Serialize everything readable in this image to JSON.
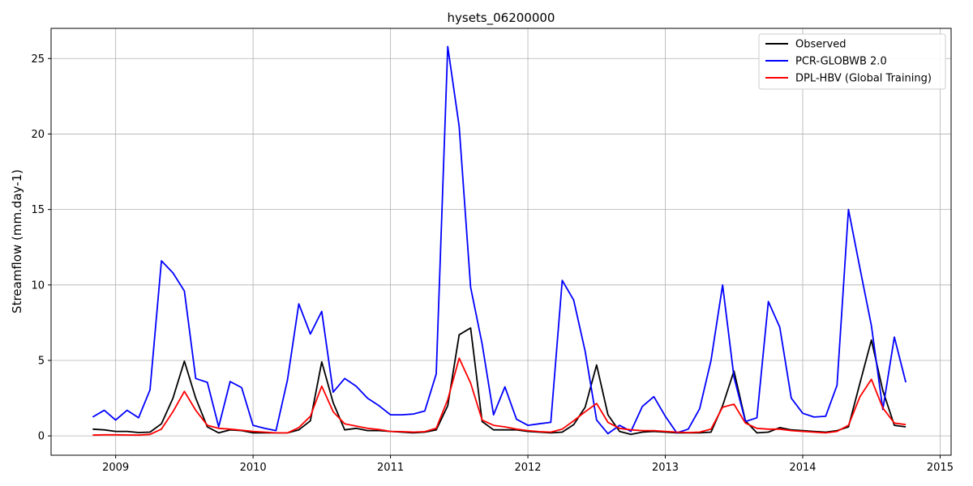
{
  "chart_data": {
    "type": "line",
    "title": "hysets_06200000",
    "xlabel": "",
    "ylabel": "Streamflow (mm.day-1)",
    "xlim": [
      2008.53,
      2015.08
    ],
    "ylim": [
      -1.28,
      27.0
    ],
    "x_ticks": [
      2009,
      2010,
      2011,
      2012,
      2013,
      2014,
      2015
    ],
    "y_ticks": [
      0,
      5,
      10,
      15,
      20,
      25
    ],
    "grid": true,
    "legend_position": "top-right",
    "x": [
      2008.833,
      2008.917,
      2009.0,
      2009.083,
      2009.167,
      2009.25,
      2009.333,
      2009.417,
      2009.5,
      2009.583,
      2009.667,
      2009.75,
      2009.833,
      2009.917,
      2010.0,
      2010.083,
      2010.167,
      2010.25,
      2010.333,
      2010.417,
      2010.5,
      2010.583,
      2010.667,
      2010.75,
      2010.833,
      2010.917,
      2011.0,
      2011.083,
      2011.167,
      2011.25,
      2011.333,
      2011.417,
      2011.5,
      2011.583,
      2011.667,
      2011.75,
      2011.833,
      2011.917,
      2012.0,
      2012.083,
      2012.167,
      2012.25,
      2012.333,
      2012.417,
      2012.5,
      2012.583,
      2012.667,
      2012.75,
      2012.833,
      2012.917,
      2013.0,
      2013.083,
      2013.167,
      2013.25,
      2013.333,
      2013.417,
      2013.5,
      2013.583,
      2013.667,
      2013.75,
      2013.833,
      2013.917,
      2014.0,
      2014.083,
      2014.167,
      2014.25,
      2014.333,
      2014.417,
      2014.5,
      2014.583,
      2014.667,
      2014.75
    ],
    "series": [
      {
        "name": "Observed",
        "color": "#000000",
        "values": [
          0.45,
          0.4,
          0.3,
          0.3,
          0.22,
          0.25,
          0.8,
          2.5,
          4.95,
          2.5,
          0.6,
          0.2,
          0.4,
          0.35,
          0.2,
          0.2,
          0.2,
          0.2,
          0.4,
          1.0,
          4.9,
          2.2,
          0.4,
          0.5,
          0.35,
          0.35,
          0.3,
          0.25,
          0.2,
          0.25,
          0.4,
          2.0,
          6.7,
          7.15,
          0.95,
          0.4,
          0.4,
          0.4,
          0.3,
          0.25,
          0.2,
          0.25,
          0.75,
          1.9,
          4.7,
          1.4,
          0.3,
          0.1,
          0.25,
          0.3,
          0.25,
          0.2,
          0.2,
          0.2,
          0.25,
          2.0,
          4.3,
          1.0,
          0.2,
          0.25,
          0.55,
          0.4,
          0.35,
          0.3,
          0.25,
          0.35,
          0.6,
          3.5,
          6.35,
          3.0,
          0.7,
          0.6
        ]
      },
      {
        "name": "PCR-GLOBWB 2.0",
        "color": "#0000ff",
        "values": [
          1.25,
          1.7,
          1.05,
          1.7,
          1.2,
          3.05,
          11.6,
          10.8,
          9.6,
          3.8,
          3.55,
          0.6,
          3.6,
          3.2,
          0.7,
          0.5,
          0.35,
          3.7,
          8.75,
          6.75,
          8.25,
          2.9,
          3.8,
          3.3,
          2.5,
          2.0,
          1.4,
          1.4,
          1.45,
          1.65,
          4.1,
          25.8,
          20.5,
          9.85,
          6.1,
          1.4,
          3.25,
          1.1,
          0.7,
          0.8,
          0.9,
          10.3,
          9.0,
          5.6,
          1.05,
          0.15,
          0.7,
          0.3,
          1.95,
          2.6,
          1.3,
          0.2,
          0.45,
          1.8,
          5.0,
          10.0,
          3.9,
          0.95,
          1.2,
          8.9,
          7.2,
          2.5,
          1.5,
          1.25,
          1.3,
          3.35,
          15.0,
          11.1,
          7.3,
          1.75,
          6.55,
          3.55
        ]
      },
      {
        "name": "DPL-HBV (Global Training)",
        "color": "#ff0000",
        "values": [
          0.05,
          0.07,
          0.07,
          0.06,
          0.05,
          0.1,
          0.45,
          1.6,
          2.95,
          1.7,
          0.7,
          0.5,
          0.45,
          0.38,
          0.3,
          0.25,
          0.2,
          0.2,
          0.55,
          1.3,
          3.3,
          1.6,
          0.8,
          0.65,
          0.5,
          0.42,
          0.3,
          0.28,
          0.25,
          0.28,
          0.5,
          2.4,
          5.15,
          3.5,
          1.05,
          0.7,
          0.6,
          0.45,
          0.35,
          0.28,
          0.25,
          0.45,
          1.0,
          1.6,
          2.15,
          0.9,
          0.5,
          0.4,
          0.35,
          0.35,
          0.3,
          0.25,
          0.22,
          0.25,
          0.45,
          1.9,
          2.1,
          0.85,
          0.5,
          0.45,
          0.45,
          0.35,
          0.3,
          0.25,
          0.2,
          0.3,
          0.7,
          2.6,
          3.75,
          1.85,
          0.85,
          0.75
        ]
      }
    ]
  }
}
